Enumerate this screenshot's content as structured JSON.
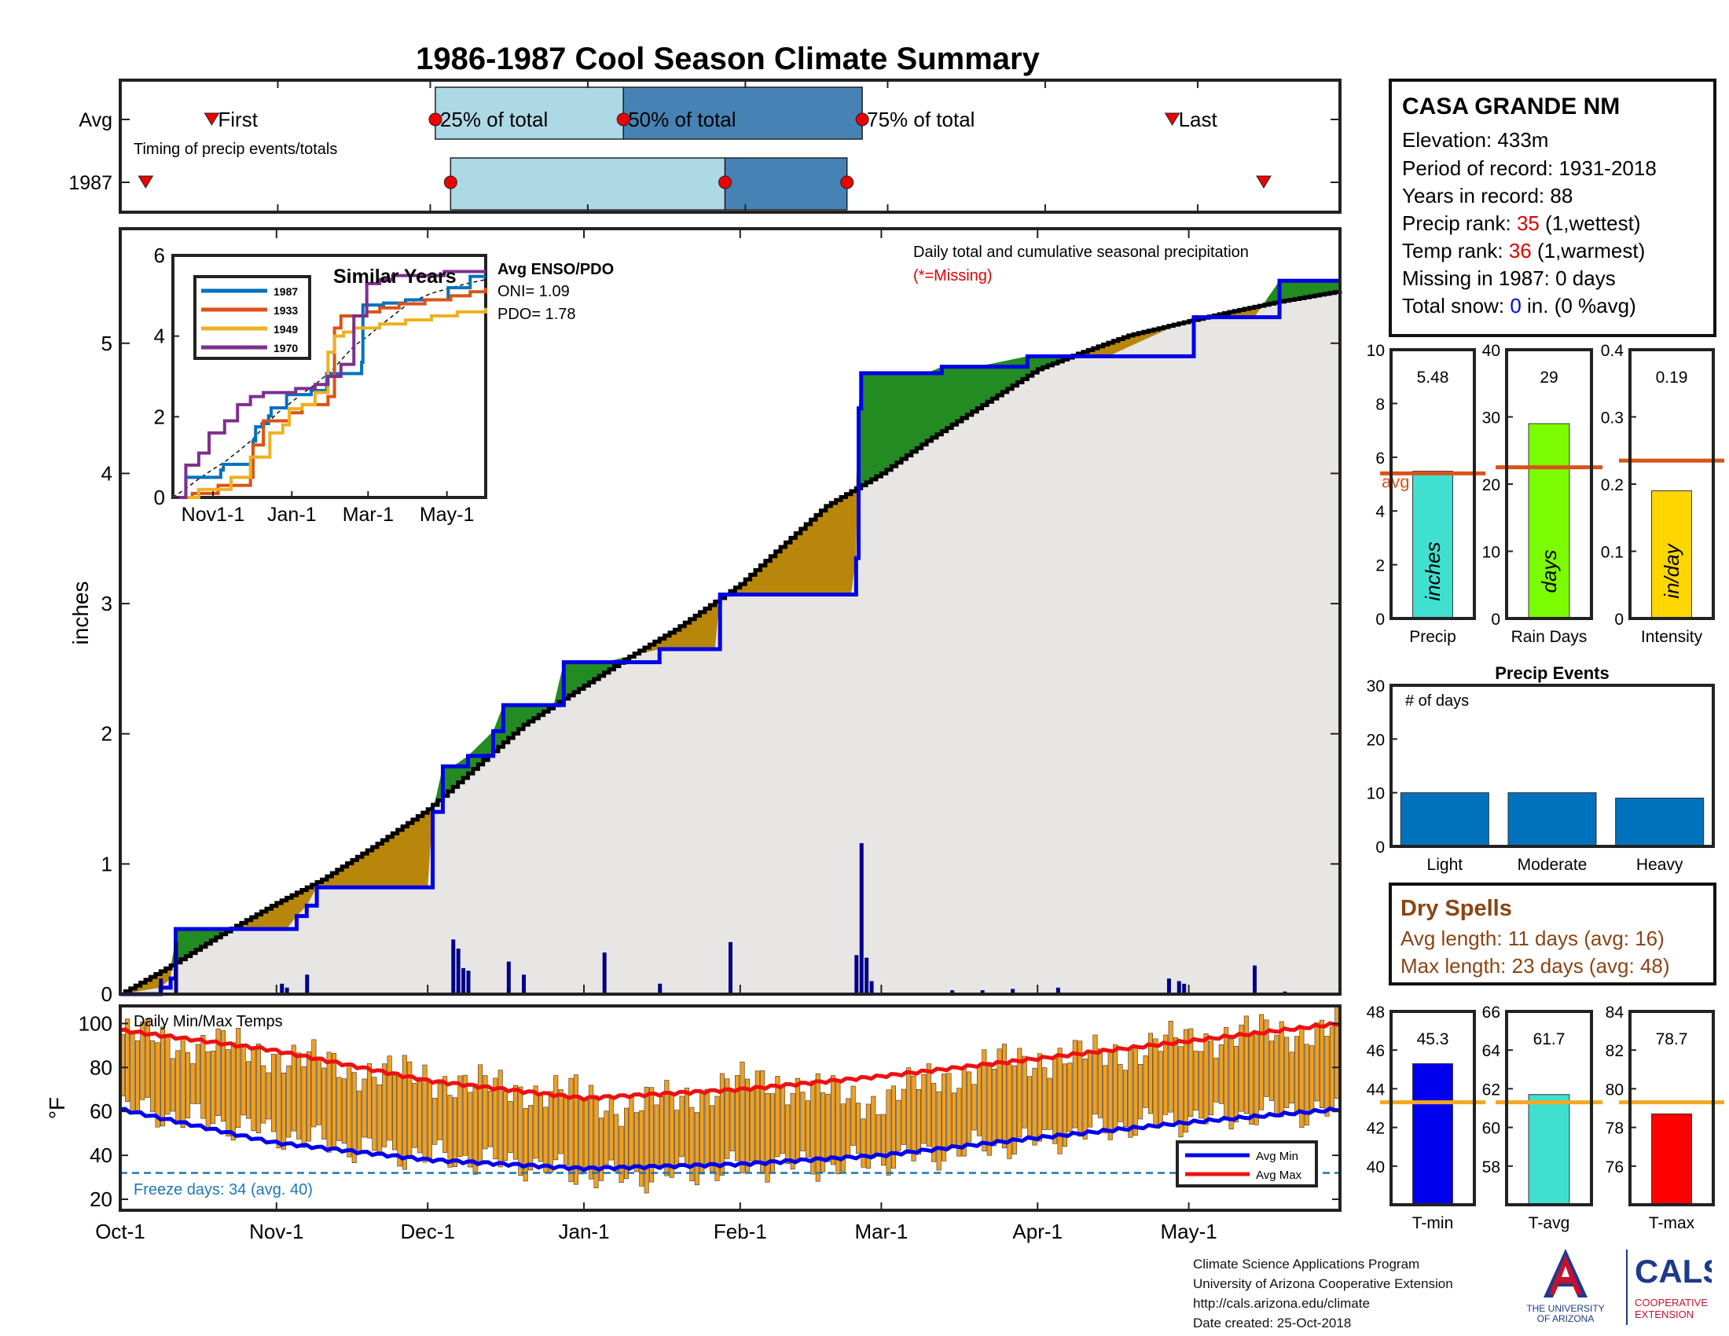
{
  "page_title": "1986-1987 Cool Season Climate Summary",
  "colors": {
    "title": "#1f4e8c",
    "panel_border": "#222222",
    "avg_line": "#d95319",
    "cum_blue": "#0000e6",
    "cum_black": "#000000",
    "wet_fill": "#228b22",
    "dry_fill": "#b8860b",
    "area_gray": "#e8e6e4",
    "daily_bar": "#00008b",
    "temp_bar": "#f0a020",
    "avg_max": "#ee1111",
    "avg_min": "#0000ee",
    "freeze": "#1f77b4",
    "events_bar": "#0072bd"
  },
  "station": {
    "name": "CASA GRANDE NM",
    "elevation_label": "Elevation:",
    "elevation_value": "433m",
    "period_label": "Period of record:",
    "period_value": "1931-2018",
    "years_label": "Years in record:",
    "years_value": "88",
    "precip_rank_label": "Precip rank:",
    "precip_rank_value": "35",
    "precip_rank_note": "(1,wettest)",
    "temp_rank_label": "Temp rank:",
    "temp_rank_value": "36",
    "temp_rank_note": "(1,warmest)",
    "missing_label": "Missing in 1987:",
    "missing_value": "0 days",
    "snow_label": "Total snow:",
    "snow_value": "0",
    "snow_note": "in. (0 %avg)"
  },
  "dry_spells": {
    "title": "Dry Spells",
    "avg_line": "Avg length: 11 days (avg: 16)",
    "max_line": "Max length: 23 days (avg: 48)"
  },
  "footer": {
    "line1": "Climate Science Applications Program",
    "line2": "University of Arizona Cooperative Extension",
    "line3": "http://cals.arizona.edu/climate",
    "line4": " Date created: 25-Oct-2018"
  },
  "logos": {
    "ua_line1": "THE UNIVERSITY",
    "ua_line2": "OF ARIZONA",
    "cals_name": "CALS",
    "cals_line1": "COOPERATIVE",
    "cals_line2": "EXTENSION"
  },
  "chart_data": [
    {
      "id": "timing",
      "type": "timeline",
      "annotation": "Timing of precip events/totals",
      "rows": [
        "Avg",
        "1987"
      ],
      "label_first": "First",
      "label_last": "Last",
      "label_q25": "25% of total",
      "label_q50": "50% of total",
      "label_q75": "75% of total",
      "x_range_days": [
        0,
        240
      ],
      "avg": {
        "first": 18,
        "q25": 62,
        "q50": 99,
        "q75": 146,
        "last": 207
      },
      "y1987": {
        "first": 5,
        "q25": 65,
        "q50": 119,
        "q75": 143,
        "last": 225
      }
    },
    {
      "id": "main",
      "type": "area",
      "ylabel": "inches",
      "ylim": [
        0,
        6
      ],
      "yticks": [
        0,
        1,
        2,
        3,
        4,
        5
      ],
      "x_ticks": [
        "Oct-1",
        "Nov-1",
        "Dec-1",
        "Jan-1",
        "Feb-1",
        "Mar-1",
        "Apr-1",
        "May-1"
      ],
      "x_tick_days": [
        0,
        31,
        61,
        92,
        123,
        151,
        182,
        212
      ],
      "x_range_days": [
        0,
        242
      ],
      "legend_text": "Daily total and cumulative seasonal precipitation",
      "missing_note": "(*=Missing)",
      "avg_cumulative": {
        "x": [
          0,
          10,
          20,
          31,
          40,
          50,
          61,
          70,
          80,
          92,
          100,
          110,
          123,
          130,
          140,
          151,
          160,
          170,
          182,
          190,
          200,
          212,
          220,
          230,
          242
        ],
        "y": [
          0,
          0.22,
          0.46,
          0.7,
          0.88,
          1.13,
          1.42,
          1.73,
          2.07,
          2.37,
          2.57,
          2.8,
          3.15,
          3.4,
          3.75,
          4.0,
          4.25,
          4.5,
          4.8,
          4.92,
          5.06,
          5.17,
          5.24,
          5.32,
          5.4
        ]
      },
      "cumulative_1987": {
        "x": [
          0,
          8,
          10,
          11,
          33,
          35,
          37,
          39,
          45,
          61,
          62,
          64,
          66,
          69,
          74,
          76,
          86,
          88,
          96,
          107,
          118,
          119,
          145,
          146,
          146.5,
          147,
          160,
          163,
          170,
          180,
          185,
          191,
          196,
          213,
          225,
          230,
          242
        ],
        "y": [
          0,
          0.05,
          0.12,
          0.5,
          0.5,
          0.6,
          0.68,
          0.82,
          0.82,
          0.82,
          1.4,
          1.75,
          1.75,
          1.83,
          2.02,
          2.22,
          2.22,
          2.55,
          2.55,
          2.65,
          2.65,
          3.07,
          3.07,
          3.35,
          4.5,
          4.77,
          4.77,
          4.82,
          4.82,
          4.9,
          4.9,
          4.9,
          4.9,
          5.2,
          5.2,
          5.48,
          5.48
        ]
      },
      "daily": {
        "x": [
          8,
          11,
          32,
          33,
          37,
          66,
          67,
          68,
          69,
          77,
          80,
          96,
          107,
          121,
          146,
          147,
          148,
          149,
          165,
          171,
          177,
          186,
          208,
          210,
          211,
          225,
          231
        ],
        "y": [
          0.12,
          0.4,
          0.08,
          0.05,
          0.15,
          0.42,
          0.35,
          0.2,
          0.18,
          0.25,
          0.15,
          0.32,
          0.08,
          0.4,
          0.3,
          1.16,
          0.28,
          0.1,
          0.03,
          0.03,
          0.04,
          0.05,
          0.12,
          0.1,
          0.08,
          0.22,
          0.02
        ]
      }
    },
    {
      "id": "similar",
      "type": "line",
      "title": "Similar Years",
      "ylim": [
        0,
        6
      ],
      "yticks": [
        0,
        2,
        4,
        6
      ],
      "x_ticks": [
        "Nov1-1",
        "Jan-1",
        "Mar-1",
        "May-1"
      ],
      "x_tick_days": [
        31,
        92,
        151,
        212
      ],
      "x_range_days": [
        0,
        242
      ],
      "series": [
        {
          "name": "1987",
          "color": "#0072bd",
          "x": [
            0,
            10,
            33,
            37,
            39,
            45,
            62,
            64,
            69,
            74,
            76,
            88,
            107,
            119,
            146,
            147,
            163,
            180,
            213,
            230,
            242
          ],
          "y": [
            0,
            0.5,
            0.5,
            0.68,
            0.82,
            0.82,
            1.4,
            1.75,
            1.83,
            2.02,
            2.22,
            2.55,
            2.65,
            3.07,
            3.35,
            4.77,
            4.82,
            4.9,
            5.2,
            5.48,
            5.48
          ]
        },
        {
          "name": "1933",
          "color": "#d95319",
          "x": [
            0,
            15,
            35,
            60,
            62,
            70,
            90,
            100,
            120,
            125,
            130,
            150,
            160,
            175,
            195,
            215,
            230,
            242
          ],
          "y": [
            0,
            0.1,
            0.3,
            0.5,
            1.3,
            1.9,
            2.1,
            2.3,
            2.5,
            4.2,
            4.5,
            4.6,
            4.7,
            4.8,
            4.9,
            5.0,
            5.1,
            5.2
          ]
        },
        {
          "name": "1949",
          "color": "#edb120",
          "x": [
            0,
            20,
            45,
            60,
            75,
            85,
            90,
            100,
            110,
            120,
            125,
            132,
            140,
            160,
            180,
            200,
            220,
            242
          ],
          "y": [
            0,
            0.2,
            0.5,
            1.0,
            1.6,
            1.8,
            2.2,
            2.3,
            2.6,
            3.6,
            4.0,
            4.1,
            4.2,
            4.3,
            4.4,
            4.5,
            4.6,
            4.7
          ]
        },
        {
          "name": "1970",
          "color": "#7e2f8e",
          "x": [
            0,
            10,
            20,
            28,
            40,
            50,
            60,
            70,
            80,
            95,
            110,
            120,
            130,
            140,
            150,
            160,
            170,
            190,
            210,
            242
          ],
          "y": [
            0,
            0.8,
            1.1,
            1.6,
            1.9,
            2.3,
            2.5,
            2.6,
            2.6,
            2.7,
            2.8,
            3.0,
            3.3,
            4.5,
            5.3,
            5.4,
            5.5,
            5.5,
            5.6,
            5.6
          ]
        }
      ],
      "avg_enso_title": "Avg ENSO/PDO",
      "oni_text": "ONI= 1.09",
      "pdo_text": "PDO= 1.78"
    },
    {
      "id": "temps",
      "type": "bar",
      "title": "Daily Min/Max Temps",
      "ylabel": "°F",
      "ylim": [
        15,
        108
      ],
      "yticks": [
        20,
        40,
        60,
        80,
        100
      ],
      "x_ticks": [
        "Oct-1",
        "Nov-1",
        "Dec-1",
        "Jan-1",
        "Feb-1",
        "Mar-1",
        "Apr-1",
        "May-1"
      ],
      "x_tick_days": [
        0,
        31,
        61,
        92,
        123,
        151,
        182,
        212
      ],
      "x_range_days": [
        0,
        242
      ],
      "freeze_line": 32,
      "freeze_text": "Freeze days: 34 (avg. 40)",
      "legend": [
        "Avg Min",
        "Avg Max"
      ],
      "avg_max": {
        "x": [
          0,
          30,
          61,
          92,
          123,
          151,
          182,
          212,
          242
        ],
        "y": [
          97,
          88,
          74,
          66,
          70,
          76,
          84,
          92,
          100
        ]
      },
      "avg_min": {
        "x": [
          0,
          30,
          61,
          92,
          123,
          151,
          182,
          212,
          242
        ],
        "y": [
          61,
          46,
          38,
          34,
          36,
          40,
          48,
          55,
          61
        ]
      },
      "daily_max": {
        "x": [
          0,
          10,
          20,
          30,
          40,
          50,
          60,
          70,
          80,
          90,
          100,
          110,
          120,
          130,
          140,
          150,
          160,
          170,
          180,
          190,
          200,
          210,
          220,
          230,
          241
        ],
        "y": [
          95,
          92,
          90,
          86,
          82,
          78,
          76,
          72,
          70,
          68,
          62,
          66,
          72,
          74,
          68,
          65,
          74,
          80,
          84,
          85,
          88,
          92,
          95,
          96,
          98
        ]
      },
      "daily_min": {
        "x": [
          0,
          10,
          20,
          30,
          40,
          50,
          60,
          70,
          80,
          90,
          100,
          110,
          120,
          130,
          140,
          150,
          160,
          170,
          180,
          190,
          200,
          210,
          220,
          230,
          241
        ],
        "y": [
          62,
          58,
          55,
          50,
          46,
          42,
          40,
          38,
          36,
          32,
          30,
          32,
          34,
          36,
          35,
          38,
          40,
          44,
          46,
          50,
          54,
          56,
          58,
          60,
          60
        ]
      }
    },
    {
      "id": "precip_bar",
      "type": "bar",
      "xlabel": "Precip",
      "bar_label": "inches",
      "value": 5.48,
      "value_label": "5.48",
      "avg": 5.4,
      "avg_label": "avg",
      "ylim": [
        0,
        10
      ],
      "yticks": [
        0,
        2,
        4,
        6,
        8,
        10
      ],
      "color": "#40e0d0"
    },
    {
      "id": "raindays_bar",
      "type": "bar",
      "xlabel": "Rain Days",
      "bar_label": "days",
      "value": 29,
      "value_label": "29",
      "avg": 22.5,
      "ylim": [
        0,
        40
      ],
      "yticks": [
        0,
        10,
        20,
        30,
        40
      ],
      "color": "#7cfc00"
    },
    {
      "id": "intensity_bar",
      "type": "bar",
      "xlabel": "Intensity",
      "bar_label": "in/day",
      "value": 0.19,
      "value_label": "0.19",
      "avg": 0.235,
      "ylim": [
        0,
        0.4
      ],
      "yticks": [
        0,
        0.1,
        0.2,
        0.3,
        0.4
      ],
      "ytick_labels": [
        "0",
        "0.1",
        "0.2",
        "0.3",
        "0.4"
      ],
      "color": "#ffd700"
    },
    {
      "id": "events",
      "type": "bar",
      "title": "Precip Events",
      "annotation": "# of days",
      "categories": [
        "Light",
        "Moderate",
        "Heavy"
      ],
      "values": [
        10,
        10,
        9
      ],
      "ylim": [
        0,
        30
      ],
      "yticks": [
        0,
        10,
        20,
        30
      ],
      "color": "#0072bd"
    },
    {
      "id": "tmin_bar",
      "type": "bar",
      "xlabel": "T-min",
      "value": 45.3,
      "value_label": "45.3",
      "avg": 43.3,
      "ylim": [
        38,
        48
      ],
      "yticks": [
        40,
        42,
        44,
        46,
        48
      ],
      "color": "#0000ee"
    },
    {
      "id": "tavg_bar",
      "type": "bar",
      "xlabel": "T-avg",
      "value": 61.7,
      "value_label": "61.7",
      "avg": 61.3,
      "ylim": [
        56,
        66
      ],
      "yticks": [
        58,
        60,
        62,
        64,
        66
      ],
      "color": "#40e0d0"
    },
    {
      "id": "tmax_bar",
      "type": "bar",
      "xlabel": "T-max",
      "value": 78.7,
      "value_label": "78.7",
      "avg": 79.3,
      "ylim": [
        74,
        84
      ],
      "yticks": [
        76,
        78,
        80,
        82,
        84
      ],
      "color": "#ff0000"
    }
  ]
}
